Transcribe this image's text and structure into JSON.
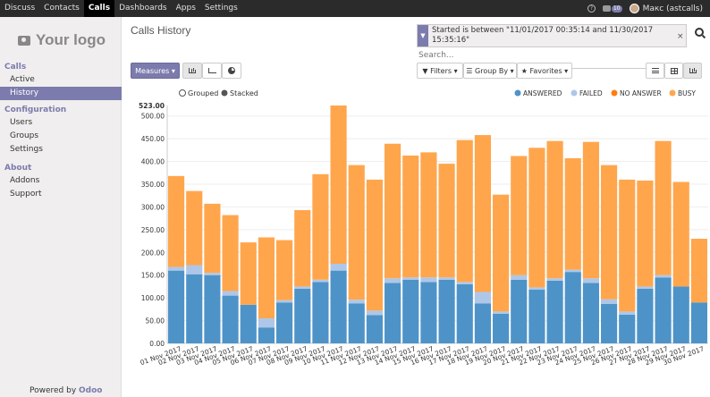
{
  "topbar": {
    "nav": [
      "Discuss",
      "Contacts",
      "Calls",
      "Dashboards",
      "Apps",
      "Settings"
    ],
    "active": "Calls",
    "badge_count": "10",
    "user_name": "Макс (astcalls)"
  },
  "sidebar": {
    "logo_text": "Your logo",
    "sections": [
      {
        "title": "Calls",
        "items": [
          "Active",
          "History"
        ]
      },
      {
        "title": "Configuration",
        "items": [
          "Users",
          "Groups",
          "Settings"
        ]
      },
      {
        "title": "About",
        "items": [
          "Addons",
          "Support"
        ]
      }
    ],
    "active_item": "History",
    "powered_prefix": "Powered by ",
    "powered_brand": "Odoo"
  },
  "page": {
    "title": "Calls History",
    "measures_label": "Measures ▾",
    "filters_label": "▼ Filters ▾",
    "groupby_label": "☰ Group By ▾",
    "favorites_label": "★ Favorites ▾"
  },
  "search": {
    "facet_text": "Started is between \"11/01/2017 00:35:14 and 11/30/2017 15:35:16\"",
    "placeholder": "Search..."
  },
  "colors": {
    "brand": "#7c7bad",
    "answered": "#4e93c8",
    "failed": "#aec7e8",
    "no_answer": "#ff7f0e",
    "busy": "#ffa64d"
  },
  "chart_data": {
    "type": "bar",
    "stacked": true,
    "toggle": {
      "grouped": "Grouped",
      "stacked": "Stacked"
    },
    "legend_position": "top-right",
    "ylim": [
      0,
      523
    ],
    "y_max_label": "523.00",
    "y_ticks": [
      "0.00",
      "50.00",
      "100.00",
      "150.00",
      "200.00",
      "250.00",
      "300.00",
      "350.00",
      "400.00",
      "450.00",
      "500.00"
    ],
    "categories": [
      "01 Nov 2017",
      "02 Nov 2017",
      "03 Nov 2017",
      "04 Nov 2017",
      "05 Nov 2017",
      "06 Nov 2017",
      "07 Nov 2017",
      "08 Nov 2017",
      "09 Nov 2017",
      "10 Nov 2017",
      "11 Nov 2017",
      "12 Nov 2017",
      "13 Nov 2017",
      "14 Nov 2017",
      "15 Nov 2017",
      "16 Nov 2017",
      "17 Nov 2017",
      "18 Nov 2017",
      "19 Nov 2017",
      "20 Nov 2017",
      "21 Nov 2017",
      "22 Nov 2017",
      "23 Nov 2017",
      "24 Nov 2017",
      "25 Nov 2017",
      "26 Nov 2017",
      "27 Nov 2017",
      "28 Nov 2017",
      "29 Nov 2017",
      "30 Nov 2017"
    ],
    "series": [
      {
        "name": "ANSWERED",
        "values": [
          160,
          152,
          150,
          105,
          85,
          35,
          90,
          120,
          135,
          160,
          88,
          62,
          133,
          140,
          135,
          140,
          130,
          88,
          65,
          140,
          118,
          138,
          157,
          133,
          87,
          63,
          120,
          145,
          125,
          90
        ]
      },
      {
        "name": "FAILED",
        "values": [
          8,
          20,
          5,
          10,
          0,
          20,
          5,
          5,
          5,
          15,
          8,
          10,
          10,
          5,
          10,
          5,
          5,
          25,
          5,
          10,
          5,
          5,
          5,
          10,
          10,
          7,
          5,
          5,
          0,
          0
        ]
      },
      {
        "name": "NO ANSWER",
        "values": [
          0,
          0,
          0,
          0,
          0,
          0,
          0,
          0,
          0,
          0,
          0,
          0,
          0,
          0,
          0,
          0,
          0,
          0,
          0,
          0,
          0,
          0,
          0,
          0,
          0,
          0,
          0,
          0,
          0,
          0
        ]
      },
      {
        "name": "BUSY",
        "values": [
          200,
          163,
          152,
          167,
          137,
          178,
          132,
          168,
          232,
          348,
          296,
          288,
          296,
          268,
          275,
          250,
          312,
          345,
          257,
          262,
          307,
          302,
          245,
          300,
          295,
          290,
          233,
          295,
          230,
          140
        ]
      }
    ]
  }
}
